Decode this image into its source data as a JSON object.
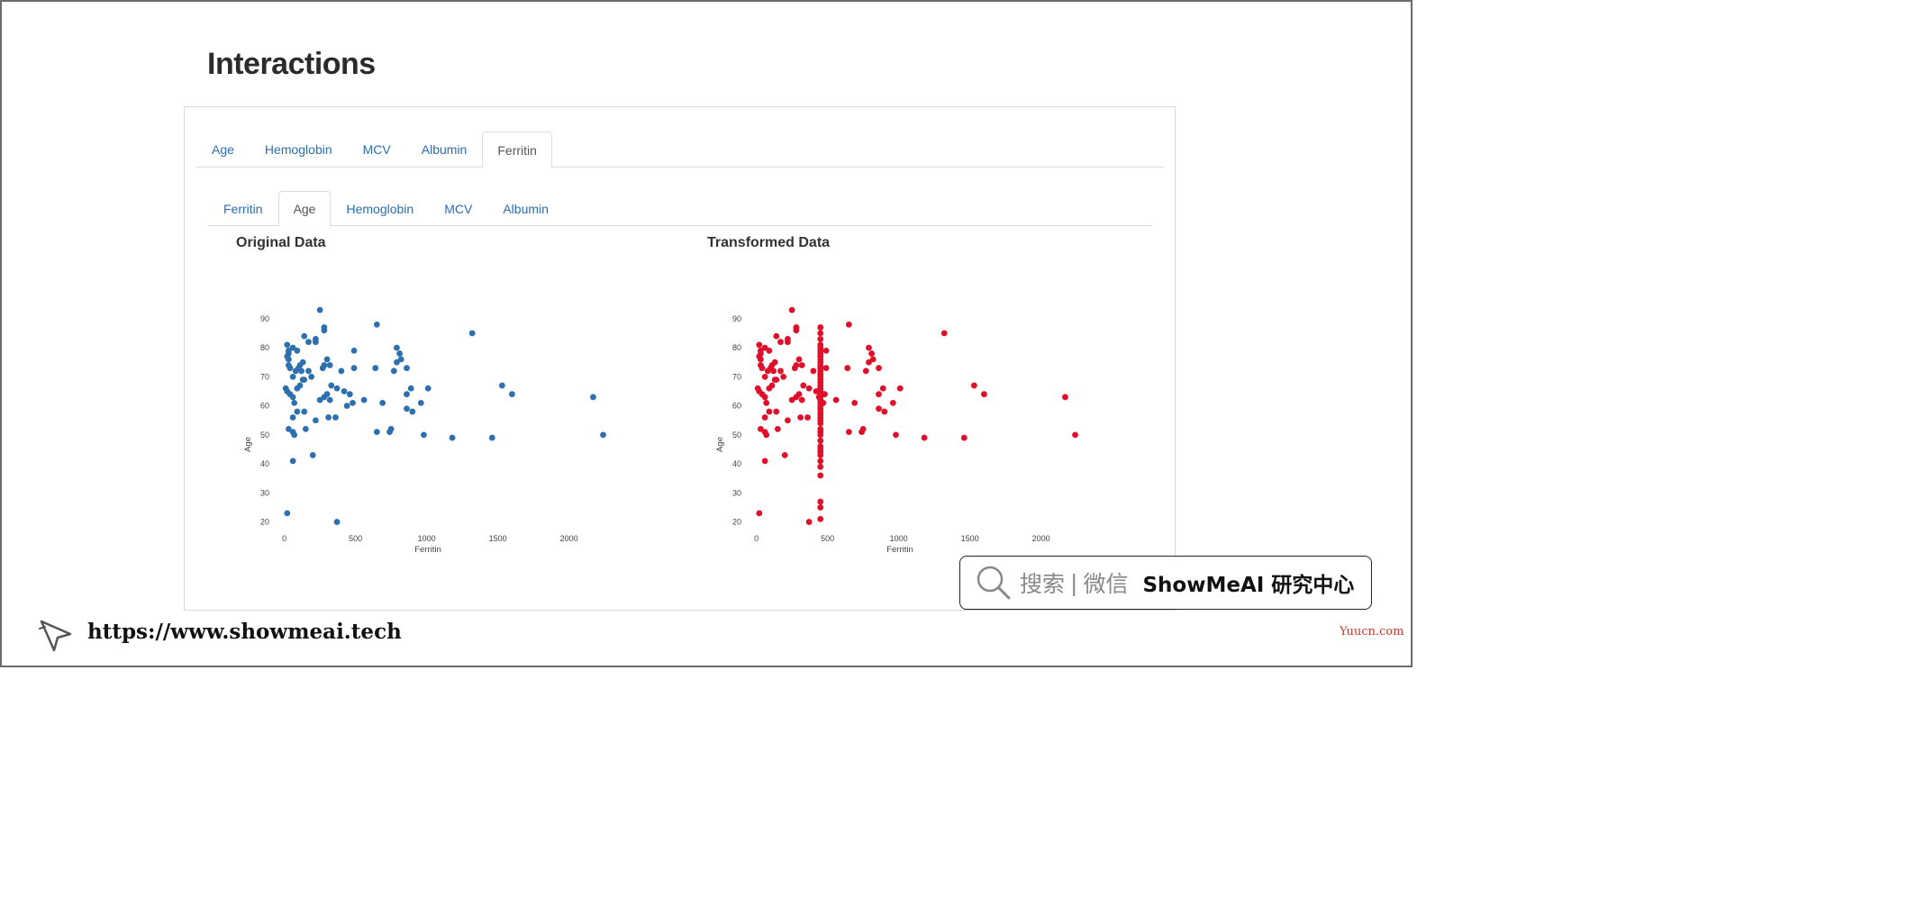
{
  "page_title": "Interactions",
  "outer_tabs": [
    {
      "label": "Age",
      "active": false
    },
    {
      "label": "Hemoglobin",
      "active": false
    },
    {
      "label": "MCV",
      "active": false
    },
    {
      "label": "Albumin",
      "active": false
    },
    {
      "label": "Ferritin",
      "active": true
    }
  ],
  "inner_tabs": [
    {
      "label": "Ferritin",
      "active": false
    },
    {
      "label": "Age",
      "active": true
    },
    {
      "label": "Hemoglobin",
      "active": false
    },
    {
      "label": "MCV",
      "active": false
    },
    {
      "label": "Albumin",
      "active": false
    }
  ],
  "colors": {
    "tab_link": "#2a6db5",
    "original_points": "#2e6fb0",
    "transformed_points": "#e0102b"
  },
  "chart_data": [
    {
      "type": "scatter",
      "title": "Original Data",
      "xlabel": "Ferritin",
      "ylabel": "Age",
      "xlim": [
        -80,
        2300
      ],
      "ylim": [
        18,
        94
      ],
      "xticks": [
        0,
        500,
        1000,
        1500,
        2000
      ],
      "yticks": [
        20,
        30,
        40,
        50,
        60,
        70,
        80,
        90
      ],
      "grid": false,
      "color": "#2e6fb0",
      "points": [
        [
          250,
          93
        ],
        [
          650,
          88
        ],
        [
          280,
          87
        ],
        [
          280,
          86
        ],
        [
          220,
          83
        ],
        [
          220,
          82
        ],
        [
          140,
          84
        ],
        [
          170,
          82
        ],
        [
          1320,
          85
        ],
        [
          20,
          81
        ],
        [
          60,
          80
        ],
        [
          90,
          79
        ],
        [
          30,
          79
        ],
        [
          30,
          78
        ],
        [
          20,
          77
        ],
        [
          30,
          76
        ],
        [
          30,
          74
        ],
        [
          40,
          73
        ],
        [
          100,
          73
        ],
        [
          80,
          72
        ],
        [
          120,
          72
        ],
        [
          130,
          75
        ],
        [
          110,
          74
        ],
        [
          300,
          76
        ],
        [
          280,
          74
        ],
        [
          270,
          73
        ],
        [
          320,
          74
        ],
        [
          400,
          72
        ],
        [
          490,
          73
        ],
        [
          490,
          79
        ],
        [
          640,
          73
        ],
        [
          790,
          80
        ],
        [
          810,
          78
        ],
        [
          820,
          76
        ],
        [
          790,
          75
        ],
        [
          770,
          72
        ],
        [
          860,
          73
        ],
        [
          60,
          70
        ],
        [
          170,
          72
        ],
        [
          190,
          70
        ],
        [
          140,
          69
        ],
        [
          10,
          66
        ],
        [
          20,
          65
        ],
        [
          40,
          64
        ],
        [
          60,
          63
        ],
        [
          90,
          66
        ],
        [
          110,
          67
        ],
        [
          130,
          69
        ],
        [
          330,
          67
        ],
        [
          370,
          66
        ],
        [
          300,
          64
        ],
        [
          280,
          63
        ],
        [
          250,
          62
        ],
        [
          320,
          62
        ],
        [
          420,
          65
        ],
        [
          460,
          64
        ],
        [
          480,
          61
        ],
        [
          560,
          62
        ],
        [
          690,
          61
        ],
        [
          860,
          64
        ],
        [
          890,
          66
        ],
        [
          1010,
          66
        ],
        [
          960,
          61
        ],
        [
          1530,
          67
        ],
        [
          1600,
          64
        ],
        [
          2170,
          63
        ],
        [
          70,
          61
        ],
        [
          90,
          58
        ],
        [
          60,
          56
        ],
        [
          140,
          58
        ],
        [
          310,
          56
        ],
        [
          360,
          56
        ],
        [
          220,
          55
        ],
        [
          440,
          60
        ],
        [
          860,
          59
        ],
        [
          900,
          58
        ],
        [
          30,
          52
        ],
        [
          60,
          51
        ],
        [
          70,
          50
        ],
        [
          150,
          52
        ],
        [
          650,
          51
        ],
        [
          740,
          51
        ],
        [
          750,
          52
        ],
        [
          980,
          50
        ],
        [
          1180,
          49
        ],
        [
          1460,
          49
        ],
        [
          2240,
          50
        ],
        [
          200,
          43
        ],
        [
          60,
          41
        ],
        [
          20,
          23
        ],
        [
          370,
          20
        ]
      ]
    },
    {
      "type": "scatter",
      "title": "Transformed Data",
      "xlabel": "Ferritin",
      "ylabel": "Age",
      "xlim": [
        -80,
        2300
      ],
      "ylim": [
        18,
        94
      ],
      "xticks": [
        0,
        500,
        1000,
        1500,
        2000
      ],
      "yticks": [
        20,
        30,
        40,
        50,
        60,
        70,
        80,
        90
      ],
      "grid": false,
      "color": "#e0102b",
      "points": [
        [
          250,
          93
        ],
        [
          650,
          88
        ],
        [
          280,
          87
        ],
        [
          280,
          86
        ],
        [
          220,
          83
        ],
        [
          220,
          82
        ],
        [
          140,
          84
        ],
        [
          170,
          82
        ],
        [
          1320,
          85
        ],
        [
          20,
          81
        ],
        [
          60,
          80
        ],
        [
          90,
          79
        ],
        [
          30,
          79
        ],
        [
          30,
          78
        ],
        [
          20,
          77
        ],
        [
          30,
          76
        ],
        [
          30,
          74
        ],
        [
          40,
          73
        ],
        [
          100,
          73
        ],
        [
          80,
          72
        ],
        [
          120,
          72
        ],
        [
          130,
          75
        ],
        [
          110,
          74
        ],
        [
          300,
          76
        ],
        [
          280,
          74
        ],
        [
          270,
          73
        ],
        [
          320,
          74
        ],
        [
          400,
          72
        ],
        [
          640,
          73
        ],
        [
          790,
          80
        ],
        [
          810,
          78
        ],
        [
          820,
          76
        ],
        [
          790,
          75
        ],
        [
          770,
          72
        ],
        [
          860,
          73
        ],
        [
          60,
          70
        ],
        [
          170,
          72
        ],
        [
          190,
          70
        ],
        [
          140,
          69
        ],
        [
          10,
          66
        ],
        [
          20,
          65
        ],
        [
          40,
          64
        ],
        [
          60,
          63
        ],
        [
          90,
          66
        ],
        [
          110,
          67
        ],
        [
          130,
          69
        ],
        [
          330,
          67
        ],
        [
          370,
          66
        ],
        [
          300,
          64
        ],
        [
          280,
          63
        ],
        [
          250,
          62
        ],
        [
          320,
          62
        ],
        [
          560,
          62
        ],
        [
          690,
          61
        ],
        [
          860,
          64
        ],
        [
          890,
          66
        ],
        [
          1010,
          66
        ],
        [
          960,
          61
        ],
        [
          1530,
          67
        ],
        [
          1600,
          64
        ],
        [
          2170,
          63
        ],
        [
          70,
          61
        ],
        [
          90,
          58
        ],
        [
          60,
          56
        ],
        [
          140,
          58
        ],
        [
          310,
          56
        ],
        [
          360,
          56
        ],
        [
          220,
          55
        ],
        [
          860,
          59
        ],
        [
          900,
          58
        ],
        [
          30,
          52
        ],
        [
          60,
          51
        ],
        [
          70,
          50
        ],
        [
          150,
          52
        ],
        [
          650,
          51
        ],
        [
          740,
          51
        ],
        [
          750,
          52
        ],
        [
          980,
          50
        ],
        [
          1180,
          49
        ],
        [
          1460,
          49
        ],
        [
          2240,
          50
        ],
        [
          200,
          43
        ],
        [
          60,
          41
        ],
        [
          20,
          23
        ],
        [
          370,
          20
        ],
        [
          450,
          87
        ],
        [
          450,
          85
        ],
        [
          450,
          83
        ],
        [
          450,
          81
        ],
        [
          450,
          80
        ],
        [
          450,
          79
        ],
        [
          450,
          78
        ],
        [
          450,
          77
        ],
        [
          450,
          76
        ],
        [
          450,
          75
        ],
        [
          450,
          74
        ],
        [
          450,
          73
        ],
        [
          450,
          72
        ],
        [
          450,
          71
        ],
        [
          450,
          70
        ],
        [
          450,
          69
        ],
        [
          450,
          68
        ],
        [
          450,
          67
        ],
        [
          450,
          66
        ],
        [
          450,
          65
        ],
        [
          450,
          64
        ],
        [
          450,
          63
        ],
        [
          450,
          62
        ],
        [
          450,
          61
        ],
        [
          450,
          60
        ],
        [
          450,
          59
        ],
        [
          450,
          58
        ],
        [
          450,
          57
        ],
        [
          450,
          56
        ],
        [
          450,
          55
        ],
        [
          450,
          54
        ],
        [
          450,
          52
        ],
        [
          450,
          51
        ],
        [
          450,
          50
        ],
        [
          450,
          48
        ],
        [
          450,
          46
        ],
        [
          450,
          45
        ],
        [
          450,
          44
        ],
        [
          450,
          43
        ],
        [
          450,
          41
        ],
        [
          450,
          39
        ],
        [
          450,
          36
        ],
        [
          450,
          27
        ],
        [
          450,
          25
        ],
        [
          450,
          21
        ],
        [
          490,
          79
        ],
        [
          490,
          73
        ],
        [
          480,
          64
        ],
        [
          470,
          61
        ],
        [
          440,
          63
        ],
        [
          420,
          65
        ]
      ]
    }
  ],
  "badge": {
    "search_text": "搜索",
    "separator": "|",
    "wechat_text": "微信",
    "brand_text": "ShowMeAI 研究中心"
  },
  "footer": {
    "url": "https://www.showmeai.tech",
    "watermark": "Yuucn.com"
  }
}
